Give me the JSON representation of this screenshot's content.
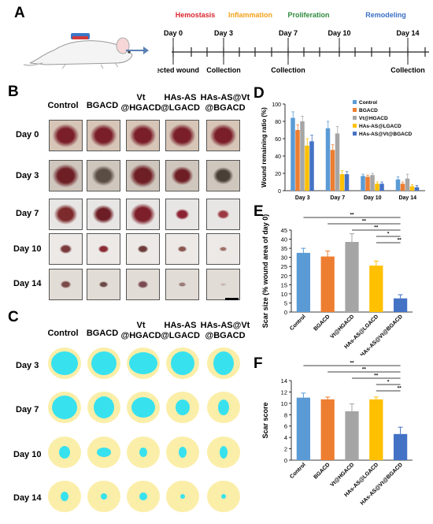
{
  "panels": {
    "A": "A",
    "B": "B",
    "C": "C",
    "D": "D",
    "E": "E",
    "F": "F"
  },
  "timeline": {
    "phases": [
      {
        "label": "Hemostasis",
        "color": "#d9262e"
      },
      {
        "label": "Inflammation",
        "color": "#f2a21a"
      },
      {
        "label": "Proliferation",
        "color": "#2f8a3c"
      },
      {
        "label": "Remodeling",
        "color": "#3a6fc4"
      }
    ],
    "days": [
      "Day 0",
      "Day 3",
      "Day 7",
      "Day 10",
      "Day 14"
    ],
    "events": [
      "Infected wound",
      "Collection",
      "Collection",
      "Collection"
    ]
  },
  "groups": [
    "Control",
    "BGACD",
    "Vt\n@HGACD",
    "HAs-AS\n@LGACD",
    "HAs-AS@Vt\n@BGACD"
  ],
  "photo_days": [
    "Day 0",
    "Day 3",
    "Day 7",
    "Day 10",
    "Day 14"
  ],
  "trace_days": [
    "Day 3",
    "Day 7",
    "Day 10",
    "Day 14"
  ],
  "chart_data": [
    {
      "type": "bar",
      "panel": "D",
      "categories": [
        "Day 3",
        "Day 7",
        "Day 10",
        "Day 14"
      ],
      "series": [
        {
          "name": "Control",
          "color": "#5b9bd5",
          "values": [
            84,
            72,
            17,
            13
          ],
          "errors": [
            7,
            8,
            2,
            3
          ]
        },
        {
          "name": "BGACD",
          "color": "#ed7d31",
          "values": [
            70,
            47,
            16,
            8
          ],
          "errors": [
            6,
            6,
            2,
            2
          ]
        },
        {
          "name": "Vt@HGACD",
          "color": "#a5a5a5",
          "values": [
            80,
            66,
            18,
            14
          ],
          "errors": [
            6,
            8,
            2,
            5
          ]
        },
        {
          "name": "HAs-AS@LGACD",
          "color": "#ffc000",
          "values": [
            52,
            19,
            8,
            5
          ],
          "errors": [
            8,
            4,
            2,
            2
          ]
        },
        {
          "name": "HAs-AS@Vt@BGACD",
          "color": "#4472c4",
          "values": [
            57,
            19,
            8,
            4
          ],
          "errors": [
            7,
            3,
            2,
            2
          ]
        }
      ],
      "ylabel": "Wound remaining ratio (%)",
      "ylim": [
        0,
        100
      ],
      "yticks": [
        "0",
        "20",
        "40",
        "60",
        "80",
        "100"
      ]
    },
    {
      "type": "bar",
      "panel": "E",
      "categories": [
        "Control",
        "BGACD",
        "Vt@HGACD",
        "HAs-AS@LGACD",
        "HAs-AS@Vt@BGACD"
      ],
      "colors": [
        "#5b9bd5",
        "#ed7d31",
        "#a5a5a5",
        "#ffc000",
        "#4472c4"
      ],
      "values": [
        32.5,
        30.5,
        38.5,
        25.5,
        7.5
      ],
      "errors": [
        2.5,
        3,
        4.5,
        2.5,
        2
      ],
      "ylabel": "Scar size (% wound area of day 0)",
      "ylim": [
        0,
        45
      ],
      "yticks": [
        "0",
        "5",
        "10",
        "15",
        "20",
        "25",
        "30",
        "35",
        "40",
        "45"
      ],
      "significance": [
        "**",
        "**",
        "**",
        "*",
        "**"
      ]
    },
    {
      "type": "bar",
      "panel": "F",
      "categories": [
        "Control",
        "BGACD",
        "Vt@HGACD",
        "HAs-AS@LGACD",
        "HAs-AS@Vt@BGACD"
      ],
      "colors": [
        "#5b9bd5",
        "#ed7d31",
        "#a5a5a5",
        "#ffc000",
        "#4472c4"
      ],
      "values": [
        11,
        10.7,
        8.6,
        10.7,
        4.6
      ],
      "errors": [
        0.8,
        0.4,
        1.3,
        0.4,
        1.2
      ],
      "ylabel": "Scar score",
      "ylim": [
        0,
        14
      ],
      "yticks": [
        "0",
        "2",
        "4",
        "6",
        "8",
        "10",
        "12",
        "14"
      ],
      "significance": [
        "**",
        "**",
        "**",
        "*",
        "**"
      ]
    }
  ]
}
